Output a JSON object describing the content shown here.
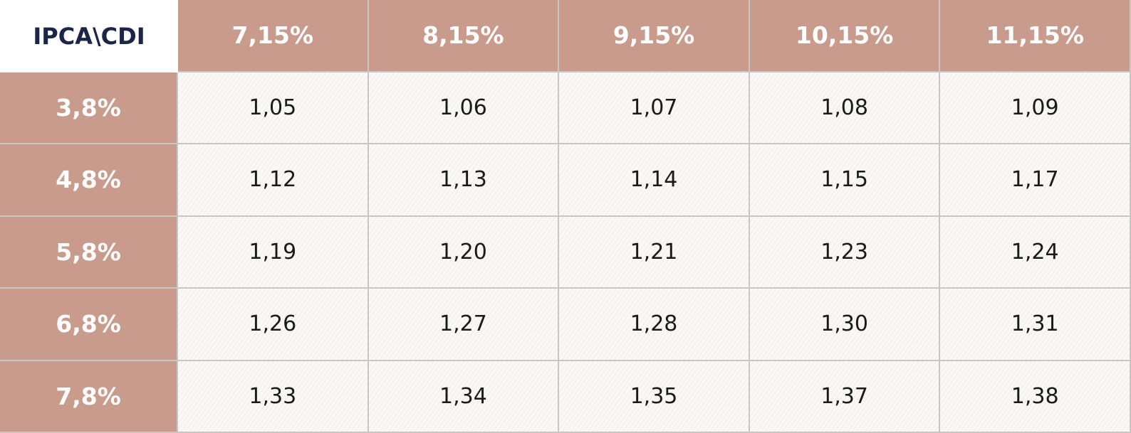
{
  "table": {
    "corner": "IPCA\\CDI",
    "columns": [
      "7,15%",
      "8,15%",
      "9,15%",
      "10,15%",
      "11,15%"
    ],
    "row_headers": [
      "3,8%",
      "4,8%",
      "5,8%",
      "6,8%",
      "7,8%"
    ],
    "rows": [
      [
        "1,05",
        "1,06",
        "1,07",
        "1,08",
        "1,09"
      ],
      [
        "1,12",
        "1,13",
        "1,14",
        "1,15",
        "1,17"
      ],
      [
        "1,19",
        "1,20",
        "1,21",
        "1,23",
        "1,24"
      ],
      [
        "1,26",
        "1,27",
        "1,28",
        "1,30",
        "1,31"
      ],
      [
        "1,33",
        "1,34",
        "1,35",
        "1,37",
        "1,38"
      ]
    ]
  }
}
